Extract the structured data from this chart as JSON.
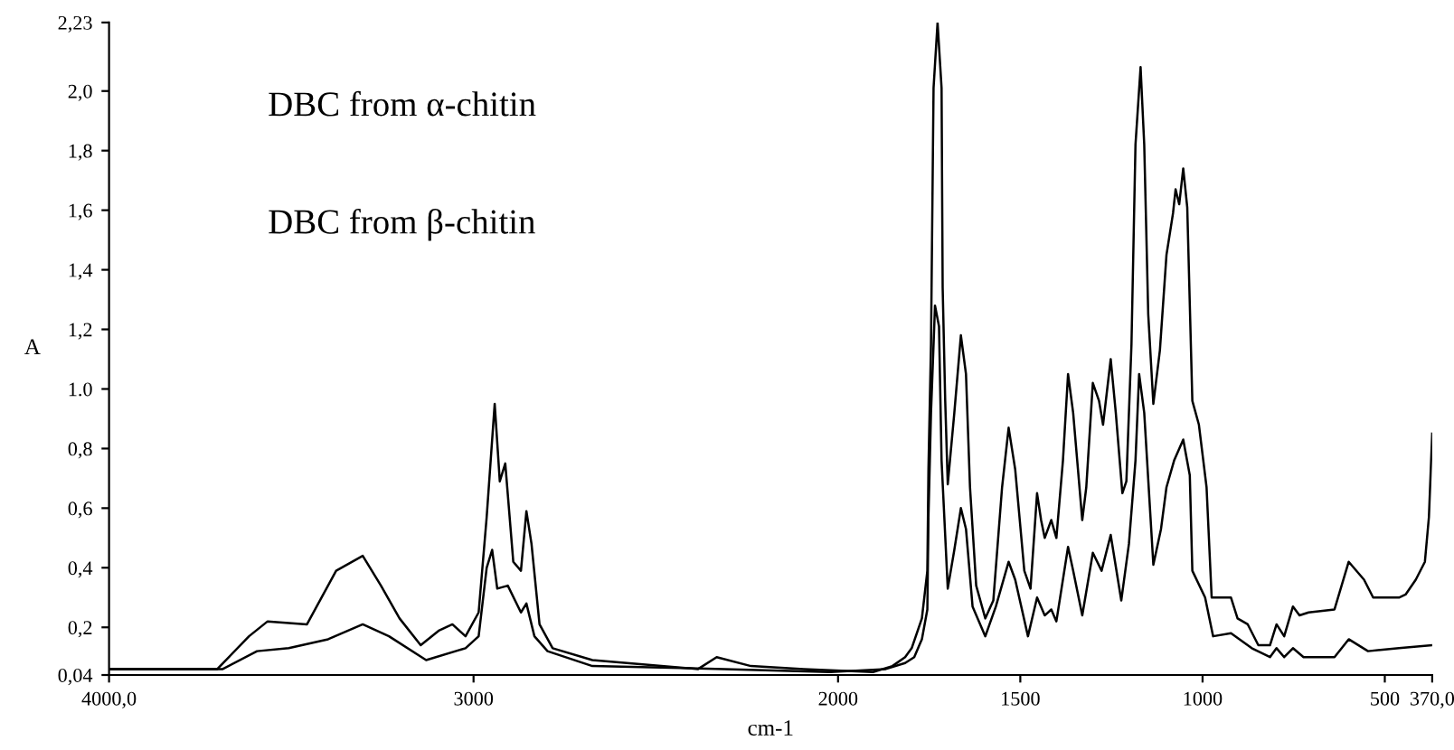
{
  "chart_data": {
    "type": "line",
    "xlabel": "cm-1",
    "ylabel": "A",
    "xlim": [
      4000,
      370
    ],
    "ylim": [
      0.04,
      2.23
    ],
    "xticks": [
      {
        "value": 4000,
        "label": "4000,0"
      },
      3000,
      2000,
      1500,
      1000,
      500,
      {
        "value": 370,
        "label": "370,0"
      }
    ],
    "yticks": [
      {
        "value": 0.04,
        "label": "0,04"
      },
      {
        "value": 0.2,
        "label": "0,2"
      },
      {
        "value": 0.4,
        "label": "0,4"
      },
      {
        "value": 0.6,
        "label": "0,6"
      },
      {
        "value": 0.8,
        "label": "0,8"
      },
      {
        "value": 1.0,
        "label": "1.0"
      },
      {
        "value": 1.2,
        "label": "1,2"
      },
      {
        "value": 1.4,
        "label": "1,4"
      },
      {
        "value": 1.6,
        "label": "1,6"
      },
      {
        "value": 1.8,
        "label": "1,8"
      },
      {
        "value": 2.0,
        "label": "2,0"
      },
      {
        "value": 2.23,
        "label": "2,23"
      }
    ],
    "annotations": [
      "DBC from α-chitin",
      "DBC from β-chitin"
    ],
    "grid": false,
    "legend": false,
    "marker": "none",
    "line_style": "solid",
    "series": [
      {
        "color": "#000000",
        "x": [
          4000,
          3703,
          3616,
          3565,
          3457,
          3377,
          3304,
          3254,
          3203,
          3145,
          3094,
          3058,
          3022,
          2986,
          2964,
          2942,
          2928,
          2913,
          2891,
          2870,
          2855,
          2841,
          2819,
          2783,
          2674,
          2384,
          2333,
          2239,
          2094,
          1904,
          1851,
          1816,
          1798,
          1770,
          1755,
          1752,
          1745,
          1738,
          1727,
          1716,
          1713,
          1706,
          1699,
          1681,
          1663,
          1649,
          1638,
          1621,
          1596,
          1574,
          1550,
          1532,
          1514,
          1489,
          1472,
          1454,
          1443,
          1433,
          1415,
          1401,
          1383,
          1369,
          1355,
          1330,
          1319,
          1301,
          1284,
          1273,
          1252,
          1238,
          1220,
          1209,
          1195,
          1184,
          1170,
          1160,
          1149,
          1135,
          1117,
          1099,
          1081,
          1074,
          1064,
          1053,
          1042,
          1028,
          1010,
          989,
          975,
          922,
          904,
          876,
          847,
          815,
          797,
          776,
          752,
          734,
          709,
          638,
          599,
          557,
          532,
          461,
          443,
          415,
          390,
          379,
          370
        ],
        "values": [
          0.06,
          0.06,
          0.17,
          0.22,
          0.21,
          0.39,
          0.44,
          0.34,
          0.23,
          0.14,
          0.19,
          0.21,
          0.17,
          0.25,
          0.57,
          0.95,
          0.69,
          0.75,
          0.42,
          0.39,
          0.59,
          0.48,
          0.21,
          0.13,
          0.09,
          0.06,
          0.1,
          0.07,
          0.06,
          0.05,
          0.07,
          0.1,
          0.13,
          0.23,
          0.39,
          0.73,
          1.15,
          2.01,
          2.23,
          2.01,
          1.34,
          0.96,
          0.68,
          0.92,
          1.18,
          1.05,
          0.67,
          0.34,
          0.23,
          0.29,
          0.67,
          0.87,
          0.73,
          0.39,
          0.33,
          0.65,
          0.56,
          0.5,
          0.56,
          0.5,
          0.76,
          1.05,
          0.92,
          0.56,
          0.67,
          1.02,
          0.96,
          0.88,
          1.1,
          0.92,
          0.65,
          0.69,
          1.15,
          1.82,
          2.08,
          1.82,
          1.25,
          0.95,
          1.13,
          1.45,
          1.59,
          1.67,
          1.62,
          1.74,
          1.61,
          0.96,
          0.88,
          0.67,
          0.3,
          0.3,
          0.23,
          0.21,
          0.14,
          0.14,
          0.21,
          0.17,
          0.27,
          0.24,
          0.25,
          0.26,
          0.42,
          0.36,
          0.3,
          0.3,
          0.31,
          0.36,
          0.42,
          0.57,
          0.85
        ]
      },
      {
        "color": "#000000",
        "x": [
          4000,
          3688,
          3594,
          3507,
          3399,
          3304,
          3232,
          3130,
          3022,
          2986,
          2964,
          2949,
          2935,
          2906,
          2870,
          2855,
          2833,
          2797,
          2674,
          2312,
          2022,
          1869,
          1816,
          1791,
          1770,
          1755,
          1752,
          1745,
          1734,
          1723,
          1716,
          1699,
          1681,
          1663,
          1649,
          1631,
          1596,
          1567,
          1532,
          1514,
          1479,
          1454,
          1433,
          1415,
          1401,
          1369,
          1355,
          1330,
          1301,
          1277,
          1252,
          1223,
          1202,
          1184,
          1174,
          1160,
          1135,
          1114,
          1099,
          1078,
          1053,
          1035,
          1028,
          993,
          971,
          922,
          865,
          815,
          797,
          776,
          752,
          723,
          638,
          599,
          546,
          461,
          370
        ],
        "values": [
          0.06,
          0.06,
          0.12,
          0.13,
          0.16,
          0.21,
          0.17,
          0.09,
          0.13,
          0.17,
          0.4,
          0.46,
          0.33,
          0.34,
          0.25,
          0.28,
          0.17,
          0.12,
          0.07,
          0.06,
          0.05,
          0.06,
          0.08,
          0.1,
          0.16,
          0.26,
          0.57,
          0.92,
          1.28,
          1.21,
          0.76,
          0.33,
          0.46,
          0.6,
          0.53,
          0.27,
          0.17,
          0.27,
          0.42,
          0.36,
          0.17,
          0.3,
          0.24,
          0.26,
          0.22,
          0.47,
          0.39,
          0.24,
          0.45,
          0.39,
          0.51,
          0.29,
          0.48,
          0.76,
          1.05,
          0.92,
          0.41,
          0.53,
          0.67,
          0.76,
          0.83,
          0.71,
          0.39,
          0.3,
          0.17,
          0.18,
          0.13,
          0.1,
          0.13,
          0.1,
          0.13,
          0.1,
          0.1,
          0.16,
          0.12,
          0.13,
          0.14
        ]
      }
    ]
  }
}
